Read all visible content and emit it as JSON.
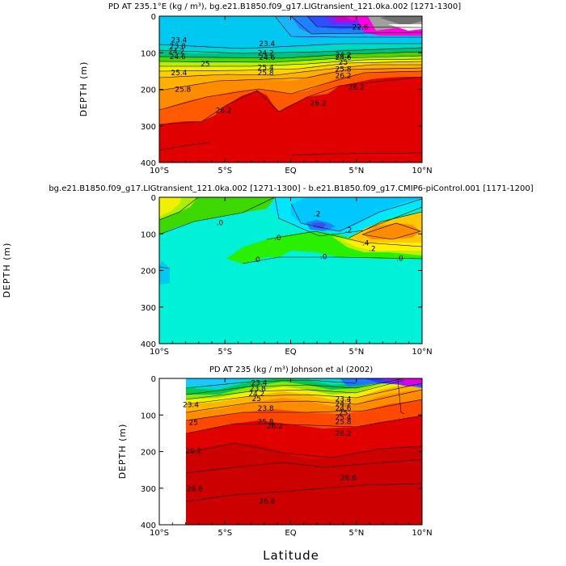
{
  "figure": {
    "xlabel": "Latitude",
    "ylabel": "DEPTH (m)"
  },
  "chart_data": [
    {
      "type": "heatmap",
      "title": "PD AT 235.1°E (kg / m³), bg.e21.B1850.f09_g17.LIGtransient_121.0ka.002 [1271-1300]",
      "xlabel": "",
      "ylabel": "DEPTH (m)",
      "x_ticks": [
        "10°S",
        "5°S",
        "EQ",
        "5°N",
        "10°N"
      ],
      "x_values": [
        -10,
        -5,
        0,
        5,
        10
      ],
      "y_ticks": [
        "0",
        "100",
        "200",
        "300",
        "400"
      ],
      "y_values": [
        0,
        100,
        200,
        300,
        400
      ],
      "xlim": [
        -10,
        10
      ],
      "ylim": [
        400,
        0
      ],
      "contour_labels": [
        {
          "text": "23.4",
          "x": -8.5,
          "y": 65
        },
        {
          "text": "23.8",
          "x": -8.6,
          "y": 82
        },
        {
          "text": "24.2",
          "x": -8.7,
          "y": 96
        },
        {
          "text": "24.6",
          "x": -8.6,
          "y": 110
        },
        {
          "text": "25",
          "x": -6.5,
          "y": 130
        },
        {
          "text": "25.4",
          "x": -8.5,
          "y": 155
        },
        {
          "text": "25.8",
          "x": -8.2,
          "y": 200
        },
        {
          "text": "26.2",
          "x": -5.1,
          "y": 258
        },
        {
          "text": "23.4",
          "x": -1.8,
          "y": 75
        },
        {
          "text": "24.2",
          "x": -1.9,
          "y": 100
        },
        {
          "text": "24.6",
          "x": -1.8,
          "y": 113
        },
        {
          "text": "25.4",
          "x": -1.9,
          "y": 140
        },
        {
          "text": "25.8",
          "x": -1.9,
          "y": 155
        },
        {
          "text": "26.2",
          "x": 2.1,
          "y": 238
        },
        {
          "text": "24.2",
          "x": 4.0,
          "y": 106
        },
        {
          "text": "24.6",
          "x": 4.0,
          "y": 113
        },
        {
          "text": "25",
          "x": 4.0,
          "y": 126
        },
        {
          "text": "25.8",
          "x": 4.0,
          "y": 145
        },
        {
          "text": "26.2",
          "x": 4.0,
          "y": 162
        },
        {
          "text": "26.2",
          "x": 5.0,
          "y": 195
        },
        {
          "text": "22.6",
          "x": 5.3,
          "y": 30
        }
      ]
    },
    {
      "type": "heatmap",
      "title": "bg.e21.B1850.f09_g17.LIGtransient_121.0ka.002 [1271-1300] - b.e21.B1850.f09_g17.CMIP6-piControl.001 [1171-1200]",
      "xlabel": "",
      "ylabel": "DEPTH (m)",
      "x_ticks": [
        "10°S",
        "5°S",
        "EQ",
        "5°N",
        "10°N"
      ],
      "x_values": [
        -10,
        -5,
        0,
        5,
        10
      ],
      "y_ticks": [
        "0",
        "100",
        "200",
        "300",
        "400"
      ],
      "y_values": [
        0,
        100,
        200,
        300,
        400
      ],
      "xlim": [
        -10,
        10
      ],
      "ylim": [
        400,
        0
      ],
      "contour_labels": [
        {
          "text": ".0",
          "x": -5.4,
          "y": 70
        },
        {
          "text": ".0",
          "x": -1.0,
          "y": 110
        },
        {
          "text": ".0",
          "x": -2.6,
          "y": 170
        },
        {
          "text": ".0",
          "x": 2.5,
          "y": 162
        },
        {
          "text": ".0",
          "x": 8.3,
          "y": 167
        },
        {
          "text": ".2",
          "x": 2.0,
          "y": 45
        },
        {
          "text": ".2",
          "x": 4.4,
          "y": 90
        },
        {
          "text": ".2",
          "x": 6.2,
          "y": 140
        },
        {
          "text": ".4",
          "x": 5.7,
          "y": 125
        }
      ]
    },
    {
      "type": "heatmap",
      "title": "PD AT 235 (kg / m³) Johnson et al (2002)",
      "xlabel": "Latitude",
      "ylabel": "DEPTH (m)",
      "x_ticks": [
        "10°S",
        "5°S",
        "EQ",
        "5°N",
        "10°N"
      ],
      "x_values": [
        -10,
        -5,
        0,
        5,
        10
      ],
      "y_ticks": [
        "0",
        "100",
        "200",
        "300",
        "400"
      ],
      "y_values": [
        0,
        100,
        200,
        300,
        400
      ],
      "xlim": [
        -10,
        10
      ],
      "ylim": [
        400,
        0
      ],
      "data_start_x": -8,
      "contour_labels": [
        {
          "text": "23.4",
          "x": -2.4,
          "y": 12
        },
        {
          "text": "23.8",
          "x": -2.5,
          "y": 28
        },
        {
          "text": "24.2",
          "x": -2.6,
          "y": 42
        },
        {
          "text": "25",
          "x": -2.6,
          "y": 55
        },
        {
          "text": "23.4",
          "x": -7.6,
          "y": 72
        },
        {
          "text": "23.8",
          "x": -1.9,
          "y": 82
        },
        {
          "text": "25",
          "x": -7.4,
          "y": 120
        },
        {
          "text": "25.8",
          "x": -1.9,
          "y": 118
        },
        {
          "text": "26.2",
          "x": -1.2,
          "y": 130
        },
        {
          "text": "26.2",
          "x": -7.4,
          "y": 198
        },
        {
          "text": "26.6",
          "x": -7.3,
          "y": 302
        },
        {
          "text": "26.6",
          "x": -1.8,
          "y": 336
        },
        {
          "text": "26.6",
          "x": 4.4,
          "y": 272
        },
        {
          "text": "23.4",
          "x": 4.0,
          "y": 56
        },
        {
          "text": "24.2",
          "x": 4.0,
          "y": 70
        },
        {
          "text": "24.6",
          "x": 4.0,
          "y": 82
        },
        {
          "text": "25",
          "x": 4.0,
          "y": 94
        },
        {
          "text": "25.4",
          "x": 4.0,
          "y": 106
        },
        {
          "text": "25.8",
          "x": 4.0,
          "y": 118
        },
        {
          "text": "26.2",
          "x": 4.0,
          "y": 150
        }
      ]
    }
  ]
}
